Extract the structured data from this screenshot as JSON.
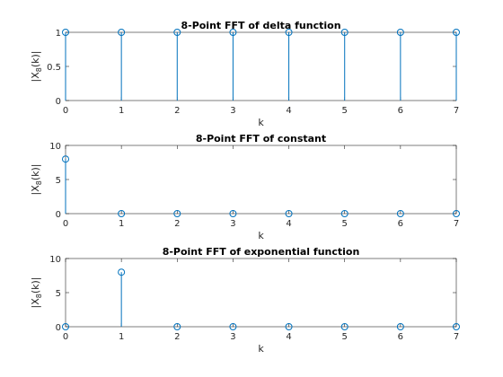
{
  "chart_data": [
    {
      "type": "stem",
      "title": "8-Point FFT of delta function",
      "xlabel": "k",
      "ylabel": {
        "main": "|X",
        "sub": "8",
        "tail": "(k)|"
      },
      "x": [
        0,
        1,
        2,
        3,
        4,
        5,
        6,
        7
      ],
      "values": [
        1,
        1,
        1,
        1,
        1,
        1,
        1,
        1
      ],
      "xlim": [
        0,
        7
      ],
      "ylim": [
        0,
        1
      ],
      "xticks": [
        "0",
        "1",
        "2",
        "3",
        "4",
        "5",
        "6",
        "7"
      ],
      "yticks": [
        {
          "value": 0,
          "label": "0"
        },
        {
          "value": 0.5,
          "label": "0.5"
        },
        {
          "value": 1,
          "label": "1"
        }
      ],
      "grid": false,
      "marker": "circle",
      "color": "#0072bd"
    },
    {
      "type": "stem",
      "title": "8-Point FFT of constant",
      "xlabel": "k",
      "ylabel": {
        "main": "|X",
        "sub": "8",
        "tail": "(k)|"
      },
      "x": [
        0,
        1,
        2,
        3,
        4,
        5,
        6,
        7
      ],
      "values": [
        8,
        0,
        0,
        0,
        0,
        0,
        0,
        0
      ],
      "xlim": [
        0,
        7
      ],
      "ylim": [
        0,
        10
      ],
      "xticks": [
        "0",
        "1",
        "2",
        "3",
        "4",
        "5",
        "6",
        "7"
      ],
      "yticks": [
        {
          "value": 0,
          "label": "0"
        },
        {
          "value": 5,
          "label": "5"
        },
        {
          "value": 10,
          "label": "10"
        }
      ],
      "grid": false,
      "marker": "circle",
      "color": "#0072bd"
    },
    {
      "type": "stem",
      "title": "8-Point FFT of exponential function",
      "xlabel": "k",
      "ylabel": {
        "main": "|X",
        "sub": "8",
        "tail": "(k)|"
      },
      "x": [
        0,
        1,
        2,
        3,
        4,
        5,
        6,
        7
      ],
      "values": [
        0,
        8,
        0,
        0,
        0,
        0,
        0,
        0
      ],
      "xlim": [
        0,
        7
      ],
      "ylim": [
        0,
        10
      ],
      "xticks": [
        "0",
        "1",
        "2",
        "3",
        "4",
        "5",
        "6",
        "7"
      ],
      "yticks": [
        {
          "value": 0,
          "label": "0"
        },
        {
          "value": 5,
          "label": "5"
        },
        {
          "value": 10,
          "label": "10"
        }
      ],
      "grid": false,
      "marker": "circle",
      "color": "#0072bd"
    }
  ]
}
